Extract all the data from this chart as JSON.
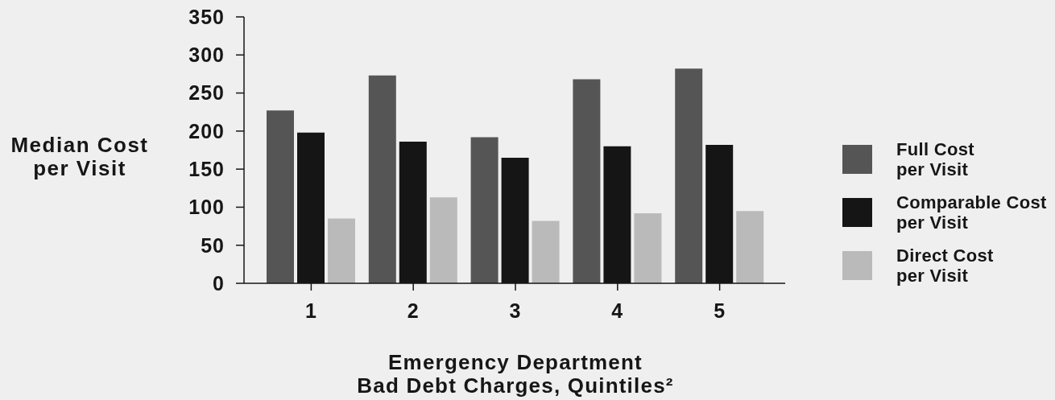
{
  "chart_data": {
    "type": "bar",
    "xlabel": "Emergency Department\nBad Debt Charges, Quintiles²",
    "ylabel": "Median Cost\nper Visit",
    "categories": [
      "1",
      "2",
      "3",
      "4",
      "5"
    ],
    "series": [
      {
        "name": "Full Cost\nper Visit",
        "color": "#555555",
        "values": [
          227,
          273,
          192,
          268,
          282
        ]
      },
      {
        "name": "Comparable Cost\nper Visit",
        "color": "#151515",
        "values": [
          198,
          186,
          165,
          180,
          182
        ]
      },
      {
        "name": "Direct Cost\nper Visit",
        "color": "#bababa",
        "values": [
          85,
          113,
          82,
          92,
          95
        ]
      }
    ],
    "ylim": [
      0,
      350
    ],
    "yticks": [
      0,
      50,
      100,
      150,
      200,
      250,
      300,
      350
    ],
    "legend": "right"
  }
}
